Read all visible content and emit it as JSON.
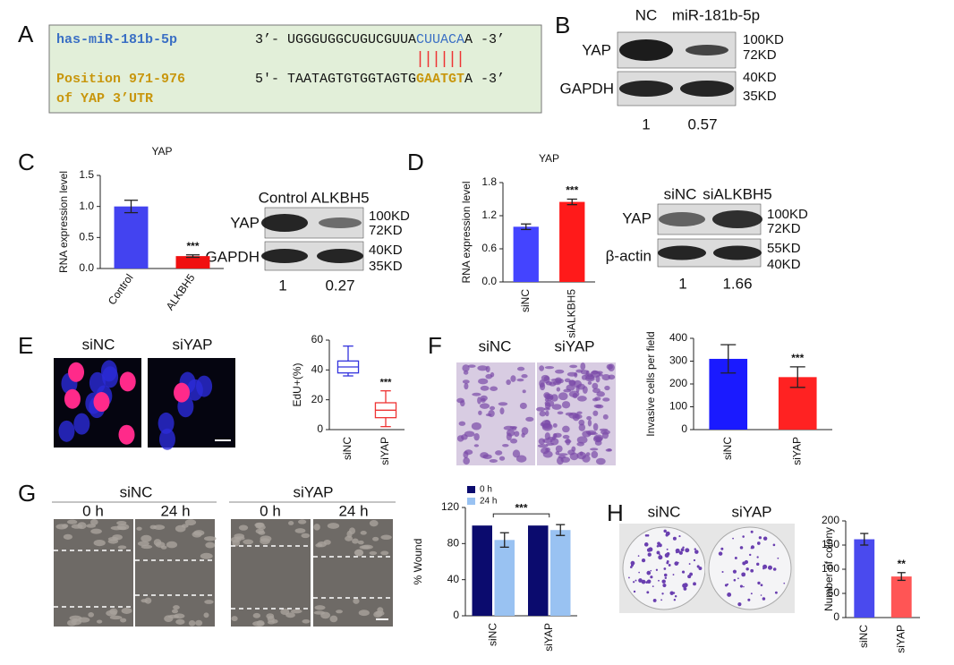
{
  "panel_labels": [
    "A",
    "B",
    "C",
    "D",
    "E",
    "F",
    "G",
    "H"
  ],
  "panel_a": {
    "mirna": "has-miR-181b-5p",
    "mirna_seq": [
      "3’- UGGGUGGCUGUCGUUA",
      "CUUACA",
      "A -3’"
    ],
    "target": [
      "Position 971-976",
      "of YAP 3’UTR"
    ],
    "target_seq": [
      "5'- TAATAGTGTGGTAGTG",
      "GAATGT",
      "A -3’"
    ]
  },
  "panel_b": {
    "lanes": [
      "NC",
      "miR-181b-5p"
    ],
    "proteins": [
      "YAP",
      "GAPDH"
    ],
    "markers": [
      "100KD",
      "72KD",
      "40KD",
      "35KD"
    ],
    "ratios": [
      1,
      0.57
    ]
  },
  "panel_c": {
    "lanes": [
      "Control",
      "ALKBH5"
    ],
    "proteins": [
      "YAP",
      "GAPDH"
    ],
    "markers": [
      "100KD",
      "72KD",
      "40KD",
      "35KD"
    ],
    "ratios": [
      1,
      0.27
    ]
  },
  "panel_d": {
    "lanes": [
      "siNC",
      "siALKBH5"
    ],
    "proteins": [
      "YAP",
      "β-actin"
    ],
    "markers": [
      "100KD",
      "72KD",
      "55KD",
      "40KD"
    ],
    "ratios": [
      1,
      1.66
    ]
  },
  "panel_e": {
    "images": [
      "siNC",
      "siYAP"
    ]
  },
  "panel_f": {
    "images": [
      "siNC",
      "siYAP"
    ]
  },
  "panel_g": {
    "groups": [
      "siNC",
      "siYAP"
    ],
    "times": [
      "0 h",
      "24 h"
    ]
  },
  "panel_h": {
    "images": [
      "siNC",
      "siYAP"
    ]
  },
  "chart_data": [
    {
      "type": "bar",
      "title": "YAP",
      "y_label": "RNA expression level",
      "categories": [
        "Control",
        "ALKBH5"
      ],
      "values": [
        1.0,
        0.2
      ],
      "errors": [
        0.1,
        0.02
      ],
      "colors": [
        "#4343f0",
        "#f01010"
      ],
      "ylim": [
        0,
        1.5
      ],
      "yticks": [
        {
          "value": 0,
          "label": "0.0"
        },
        0.5,
        {
          "value": 1,
          "label": "1.0"
        },
        1.5
      ],
      "annotation": "***"
    },
    {
      "type": "bar",
      "title": "YAP",
      "y_label": "RNA expression level",
      "categories": [
        "siNC",
        "siALKBH5"
      ],
      "values": [
        1.0,
        1.45
      ],
      "errors": [
        0.05,
        0.05
      ],
      "colors": [
        "#4444ff",
        "#ff1a1a"
      ],
      "ylim": [
        0,
        1.8
      ],
      "yticks": [
        {
          "value": 0,
          "label": "0.0"
        },
        0.6,
        1.2,
        1.8
      ],
      "annotation": "***"
    },
    {
      "type": "box",
      "y_label": "EdU+(%)",
      "categories": [
        "siNC",
        "siYAP"
      ],
      "boxes": [
        {
          "min": 36,
          "q1": 38,
          "median": 42,
          "q3": 46,
          "max": 56
        },
        {
          "min": 2,
          "q1": 8,
          "median": 13,
          "q3": 18,
          "max": 26
        }
      ],
      "colors": [
        "#3333dd",
        "#ee3333"
      ],
      "ylim": [
        0,
        60
      ],
      "yticks": [
        0,
        20,
        40,
        60
      ],
      "annotation": "***"
    },
    {
      "type": "bar",
      "y_label": "Invasive cells per field",
      "categories": [
        "siNC",
        "siYAP"
      ],
      "values": [
        310,
        230
      ],
      "errors": [
        62,
        45
      ],
      "colors": [
        "#1a1aff",
        "#ff2222"
      ],
      "ylim": [
        0,
        400
      ],
      "yticks": [
        0,
        100,
        200,
        300,
        400
      ],
      "annotation": "***"
    },
    {
      "type": "grouped_bar",
      "y_label": "% Wound",
      "categories": [
        "siNC",
        "siYAP"
      ],
      "series": [
        {
          "name": "0 h",
          "color": "#0b0b6e",
          "values": [
            100,
            100
          ]
        },
        {
          "name": "24 h",
          "color": "#99c2f2",
          "values": [
            84,
            95
          ],
          "errors": [
            8,
            6
          ]
        }
      ],
      "ylim": [
        0,
        120
      ],
      "yticks": [
        0,
        40,
        80,
        120
      ],
      "annotation": "***"
    },
    {
      "type": "bar",
      "y_label": "Number of colony",
      "categories": [
        "siNC",
        "siYAP"
      ],
      "values": [
        162,
        85
      ],
      "errors": [
        12,
        8
      ],
      "colors": [
        "#4a4aee",
        "#ff5555"
      ],
      "ylim": [
        0,
        200
      ],
      "yticks": [
        0,
        50,
        100,
        150,
        200
      ],
      "annotation": "**"
    }
  ]
}
